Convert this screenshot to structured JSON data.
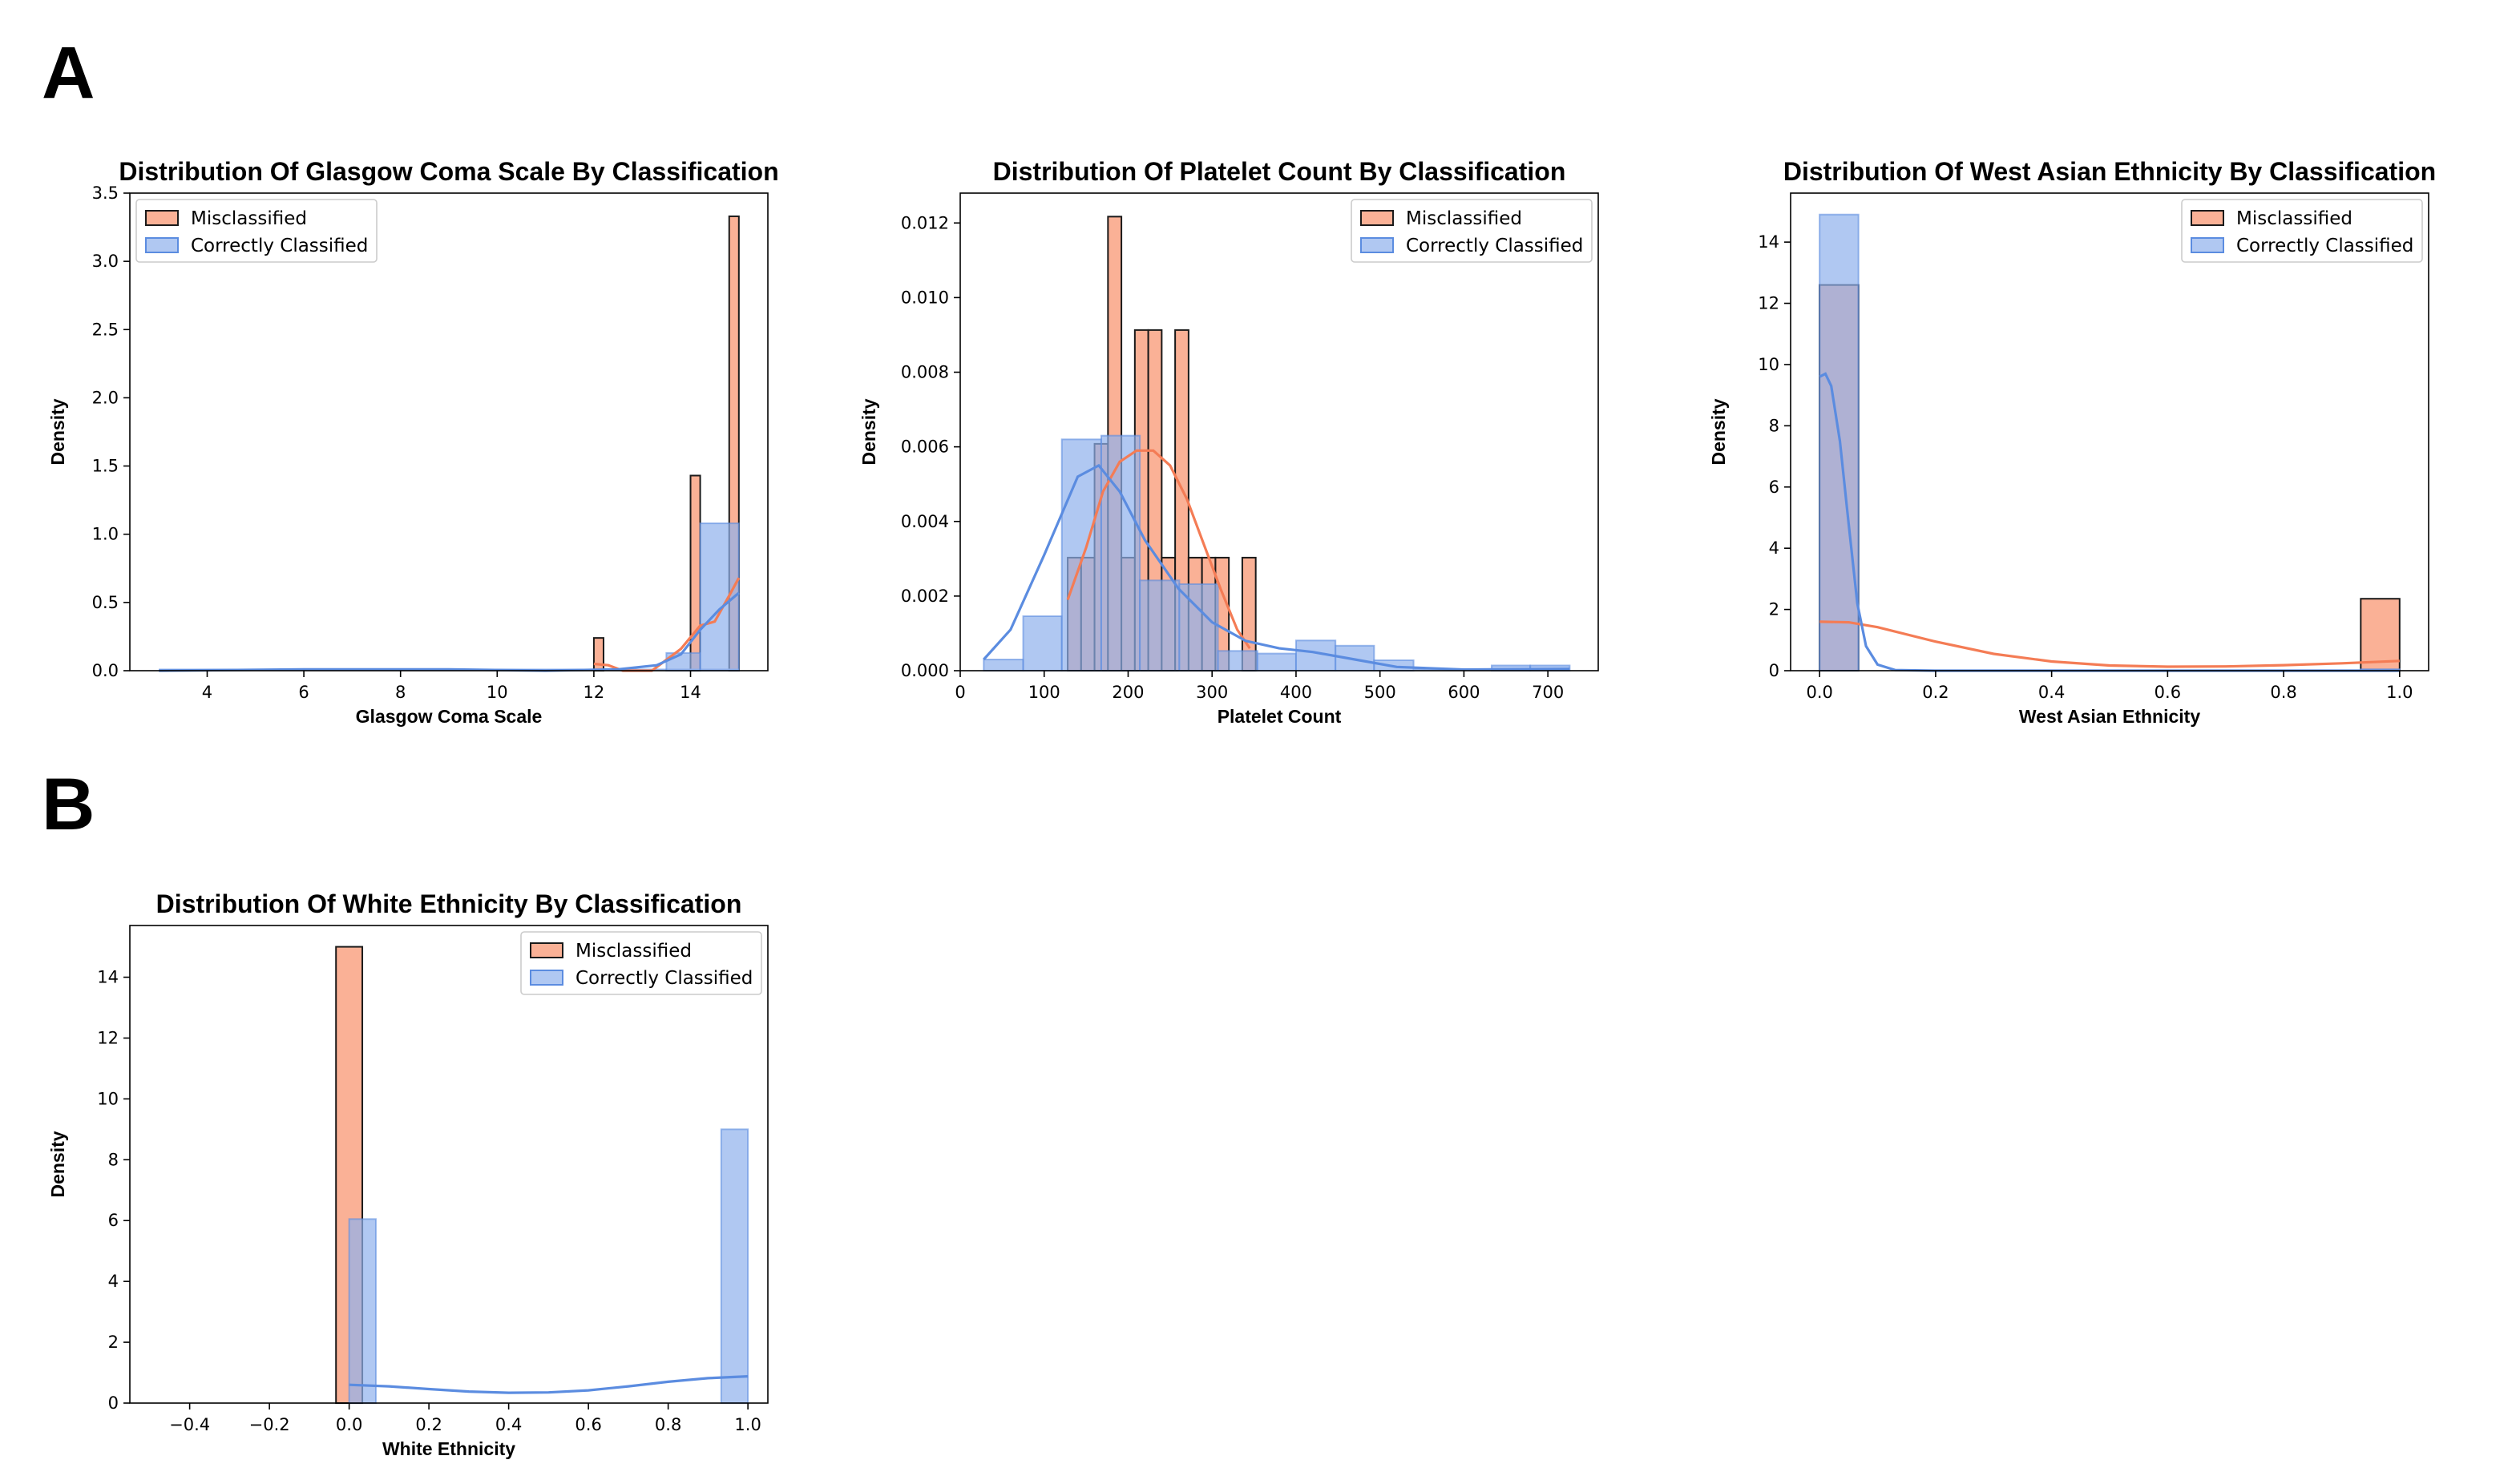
{
  "panels": [
    {
      "letter": "A",
      "color_misclassified": "#f4845f"
    },
    {
      "letter": "B"
    }
  ],
  "colors": {
    "misclassified_fill": "#f9a98b",
    "misclassified_line": "#f47c55",
    "correct_fill": "#8fb0ec",
    "correct_line": "#5b8ce0",
    "bar_edge": "#1a1a1a"
  },
  "chart_data": [
    {
      "type": "histogram",
      "panel": "A",
      "title": "Distribution Of Glasgow Coma Scale By Classification",
      "xlabel": "Glasgow Coma Scale",
      "ylabel": "Density",
      "xlim": [
        2.4,
        15.6
      ],
      "ylim": [
        0,
        3.5
      ],
      "xticks": [
        "4",
        "6",
        "8",
        "10",
        "12",
        "14"
      ],
      "xtick_values": [
        4,
        6,
        8,
        10,
        12,
        14
      ],
      "yticks": [
        "0.0",
        "0.5",
        "1.0",
        "1.5",
        "2.0",
        "2.5",
        "3.0",
        "3.5"
      ],
      "ytick_values": [
        0,
        0.5,
        1.0,
        1.5,
        2.0,
        2.5,
        3.0,
        3.5
      ],
      "legend": {
        "position": "upper left",
        "entries": [
          "Misclassified",
          "Correctly Classified"
        ]
      },
      "series": [
        {
          "name": "Misclassified",
          "bins": [
            [
              12.0,
              12.2,
              0.24
            ],
            [
              14.0,
              14.2,
              1.43
            ],
            [
              14.8,
              15.0,
              3.33
            ]
          ],
          "kde": [
            [
              12.0,
              0.05
            ],
            [
              12.3,
              0.04
            ],
            [
              12.6,
              0.0
            ],
            [
              13.2,
              0.0
            ],
            [
              13.8,
              0.16
            ],
            [
              14.2,
              0.33
            ],
            [
              14.5,
              0.36
            ],
            [
              14.8,
              0.55
            ],
            [
              15.0,
              0.68
            ]
          ]
        },
        {
          "name": "Correctly Classified",
          "bins": [
            [
              3.0,
              15.0,
              0.0
            ],
            [
              13.5,
              14.2,
              0.13
            ],
            [
              14.2,
              15.0,
              1.08
            ]
          ],
          "kde": [
            [
              3.0,
              0.0
            ],
            [
              6.0,
              0.01
            ],
            [
              9.0,
              0.01
            ],
            [
              11.0,
              0.0
            ],
            [
              12.5,
              0.01
            ],
            [
              13.3,
              0.04
            ],
            [
              13.8,
              0.12
            ],
            [
              14.2,
              0.3
            ],
            [
              14.6,
              0.45
            ],
            [
              15.0,
              0.57
            ]
          ]
        }
      ]
    },
    {
      "type": "histogram",
      "panel": "A",
      "title": "Distribution Of Platelet Count By Classification",
      "xlabel": "Platelet Count",
      "ylabel": "Density",
      "xlim": [
        0,
        760
      ],
      "ylim": [
        0,
        0.0128
      ],
      "xticks": [
        "0",
        "100",
        "200",
        "300",
        "400",
        "500",
        "600",
        "700"
      ],
      "xtick_values": [
        0,
        100,
        200,
        300,
        400,
        500,
        600,
        700
      ],
      "yticks": [
        "0.000",
        "0.002",
        "0.004",
        "0.006",
        "0.008",
        "0.010",
        "0.012"
      ],
      "ytick_values": [
        0,
        0.002,
        0.004,
        0.006,
        0.008,
        0.01,
        0.012
      ],
      "legend": {
        "position": "upper right",
        "entries": [
          "Misclassified",
          "Correctly Classified"
        ]
      },
      "series": [
        {
          "name": "Misclassified",
          "bins": [
            [
              128,
              144,
              0.00303
            ],
            [
              144,
              160,
              0.00303
            ],
            [
              160,
              176,
              0.00608
            ],
            [
              176,
              192,
              0.01217
            ],
            [
              192,
              208,
              0.00303
            ],
            [
              208,
              224,
              0.00913
            ],
            [
              224,
              240,
              0.00913
            ],
            [
              240,
              256,
              0.00303
            ],
            [
              256,
              272,
              0.00913
            ],
            [
              272,
              288,
              0.00303
            ],
            [
              288,
              304,
              0.00303
            ],
            [
              304,
              320,
              0.00303
            ],
            [
              336,
              352,
              0.00303
            ]
          ],
          "kde": [
            [
              128,
              0.0019
            ],
            [
              150,
              0.0033
            ],
            [
              170,
              0.0048
            ],
            [
              190,
              0.0056
            ],
            [
              210,
              0.0059
            ],
            [
              230,
              0.0059
            ],
            [
              250,
              0.0055
            ],
            [
              270,
              0.0046
            ],
            [
              290,
              0.0034
            ],
            [
              310,
              0.0022
            ],
            [
              330,
              0.0011
            ],
            [
              345,
              0.0006
            ]
          ]
        },
        {
          "name": "Correctly Classified",
          "bins": [
            [
              28,
              75,
              0.0003
            ],
            [
              75,
              121,
              0.00146
            ],
            [
              121,
              168,
              0.0062
            ],
            [
              168,
              214,
              0.0063
            ],
            [
              214,
              261,
              0.00242
            ],
            [
              261,
              307,
              0.00232
            ],
            [
              307,
              354,
              0.00053
            ],
            [
              354,
              400,
              0.00046
            ],
            [
              400,
              447,
              0.00081
            ],
            [
              447,
              493,
              0.00067
            ],
            [
              493,
              540,
              0.00028
            ],
            [
              540,
              586,
              0.0
            ],
            [
              586,
              633,
              0.0
            ],
            [
              633,
              679,
              0.00014
            ],
            [
              679,
              726,
              0.00014
            ]
          ],
          "kde": [
            [
              28,
              0.0003
            ],
            [
              60,
              0.0011
            ],
            [
              100,
              0.0031
            ],
            [
              140,
              0.0052
            ],
            [
              165,
              0.0055
            ],
            [
              190,
              0.0048
            ],
            [
              220,
              0.0035
            ],
            [
              260,
              0.0022
            ],
            [
              300,
              0.0013
            ],
            [
              340,
              0.0008
            ],
            [
              380,
              0.0006
            ],
            [
              420,
              0.0005
            ],
            [
              470,
              0.0003
            ],
            [
              520,
              0.0001
            ],
            [
              600,
              3e-05
            ],
            [
              726,
              5e-05
            ]
          ]
        }
      ]
    },
    {
      "type": "histogram",
      "panel": "A",
      "title": "Distribution Of West Asian Ethnicity By Classification",
      "xlabel": "West Asian Ethnicity",
      "ylabel": "Density",
      "xlim": [
        -0.05,
        1.05
      ],
      "ylim": [
        0,
        15.6
      ],
      "xticks": [
        "0.0",
        "0.2",
        "0.4",
        "0.6",
        "0.8",
        "1.0"
      ],
      "xtick_values": [
        0,
        0.2,
        0.4,
        0.6,
        0.8,
        1.0
      ],
      "yticks": [
        "0",
        "2",
        "4",
        "6",
        "8",
        "10",
        "12",
        "14"
      ],
      "ytick_values": [
        0,
        2,
        4,
        6,
        8,
        10,
        12,
        14
      ],
      "legend": {
        "position": "upper right",
        "entries": [
          "Misclassified",
          "Correctly Classified"
        ]
      },
      "series": [
        {
          "name": "Misclassified",
          "bins": [
            [
              0.0,
              0.067,
              12.6
            ],
            [
              0.933,
              1.0,
              2.35
            ]
          ],
          "kde": [
            [
              0.0,
              1.6
            ],
            [
              0.05,
              1.58
            ],
            [
              0.1,
              1.42
            ],
            [
              0.2,
              0.95
            ],
            [
              0.3,
              0.55
            ],
            [
              0.4,
              0.3
            ],
            [
              0.5,
              0.17
            ],
            [
              0.6,
              0.13
            ],
            [
              0.7,
              0.14
            ],
            [
              0.8,
              0.18
            ],
            [
              0.9,
              0.24
            ],
            [
              1.0,
              0.32
            ]
          ]
        },
        {
          "name": "Correctly Classified",
          "bins": [
            [
              0.0,
              0.067,
              14.9
            ],
            [
              0.933,
              1.0,
              0.05
            ]
          ],
          "kde": [
            [
              0.0,
              9.6
            ],
            [
              0.01,
              9.7
            ],
            [
              0.02,
              9.3
            ],
            [
              0.035,
              7.5
            ],
            [
              0.05,
              4.8
            ],
            [
              0.065,
              2.2
            ],
            [
              0.08,
              0.8
            ],
            [
              0.1,
              0.2
            ],
            [
              0.13,
              0.02
            ],
            [
              0.2,
              0.0
            ],
            [
              0.6,
              0.0
            ],
            [
              1.0,
              0.0
            ]
          ]
        }
      ]
    },
    {
      "type": "histogram",
      "panel": "B",
      "title": "Distribution Of White Ethnicity By Classification",
      "xlabel": "White Ethnicity",
      "ylabel": "Density",
      "xlim": [
        -0.55,
        1.05
      ],
      "ylim": [
        0,
        15.7
      ],
      "xticks": [
        "−0.4",
        "−0.2",
        "0.0",
        "0.2",
        "0.4",
        "0.6",
        "0.8",
        "1.0"
      ],
      "xtick_values": [
        -0.4,
        -0.2,
        0,
        0.2,
        0.4,
        0.6,
        0.8,
        1.0
      ],
      "yticks": [
        "0",
        "2",
        "4",
        "6",
        "8",
        "10",
        "12",
        "14"
      ],
      "ytick_values": [
        0,
        2,
        4,
        6,
        8,
        10,
        12,
        14
      ],
      "legend": {
        "position": "upper right",
        "entries": [
          "Misclassified",
          "Correctly Classified"
        ]
      },
      "series": [
        {
          "name": "Misclassified",
          "bins": [
            [
              -0.033,
              0.033,
              15.0
            ]
          ],
          "kde": []
        },
        {
          "name": "Correctly Classified",
          "bins": [
            [
              0.0,
              0.067,
              6.05
            ],
            [
              0.933,
              1.0,
              9.0
            ]
          ],
          "kde": [
            [
              0.0,
              0.6
            ],
            [
              0.1,
              0.55
            ],
            [
              0.2,
              0.46
            ],
            [
              0.3,
              0.38
            ],
            [
              0.4,
              0.34
            ],
            [
              0.5,
              0.35
            ],
            [
              0.6,
              0.42
            ],
            [
              0.7,
              0.55
            ],
            [
              0.8,
              0.7
            ],
            [
              0.9,
              0.82
            ],
            [
              1.0,
              0.88
            ]
          ]
        }
      ]
    }
  ]
}
